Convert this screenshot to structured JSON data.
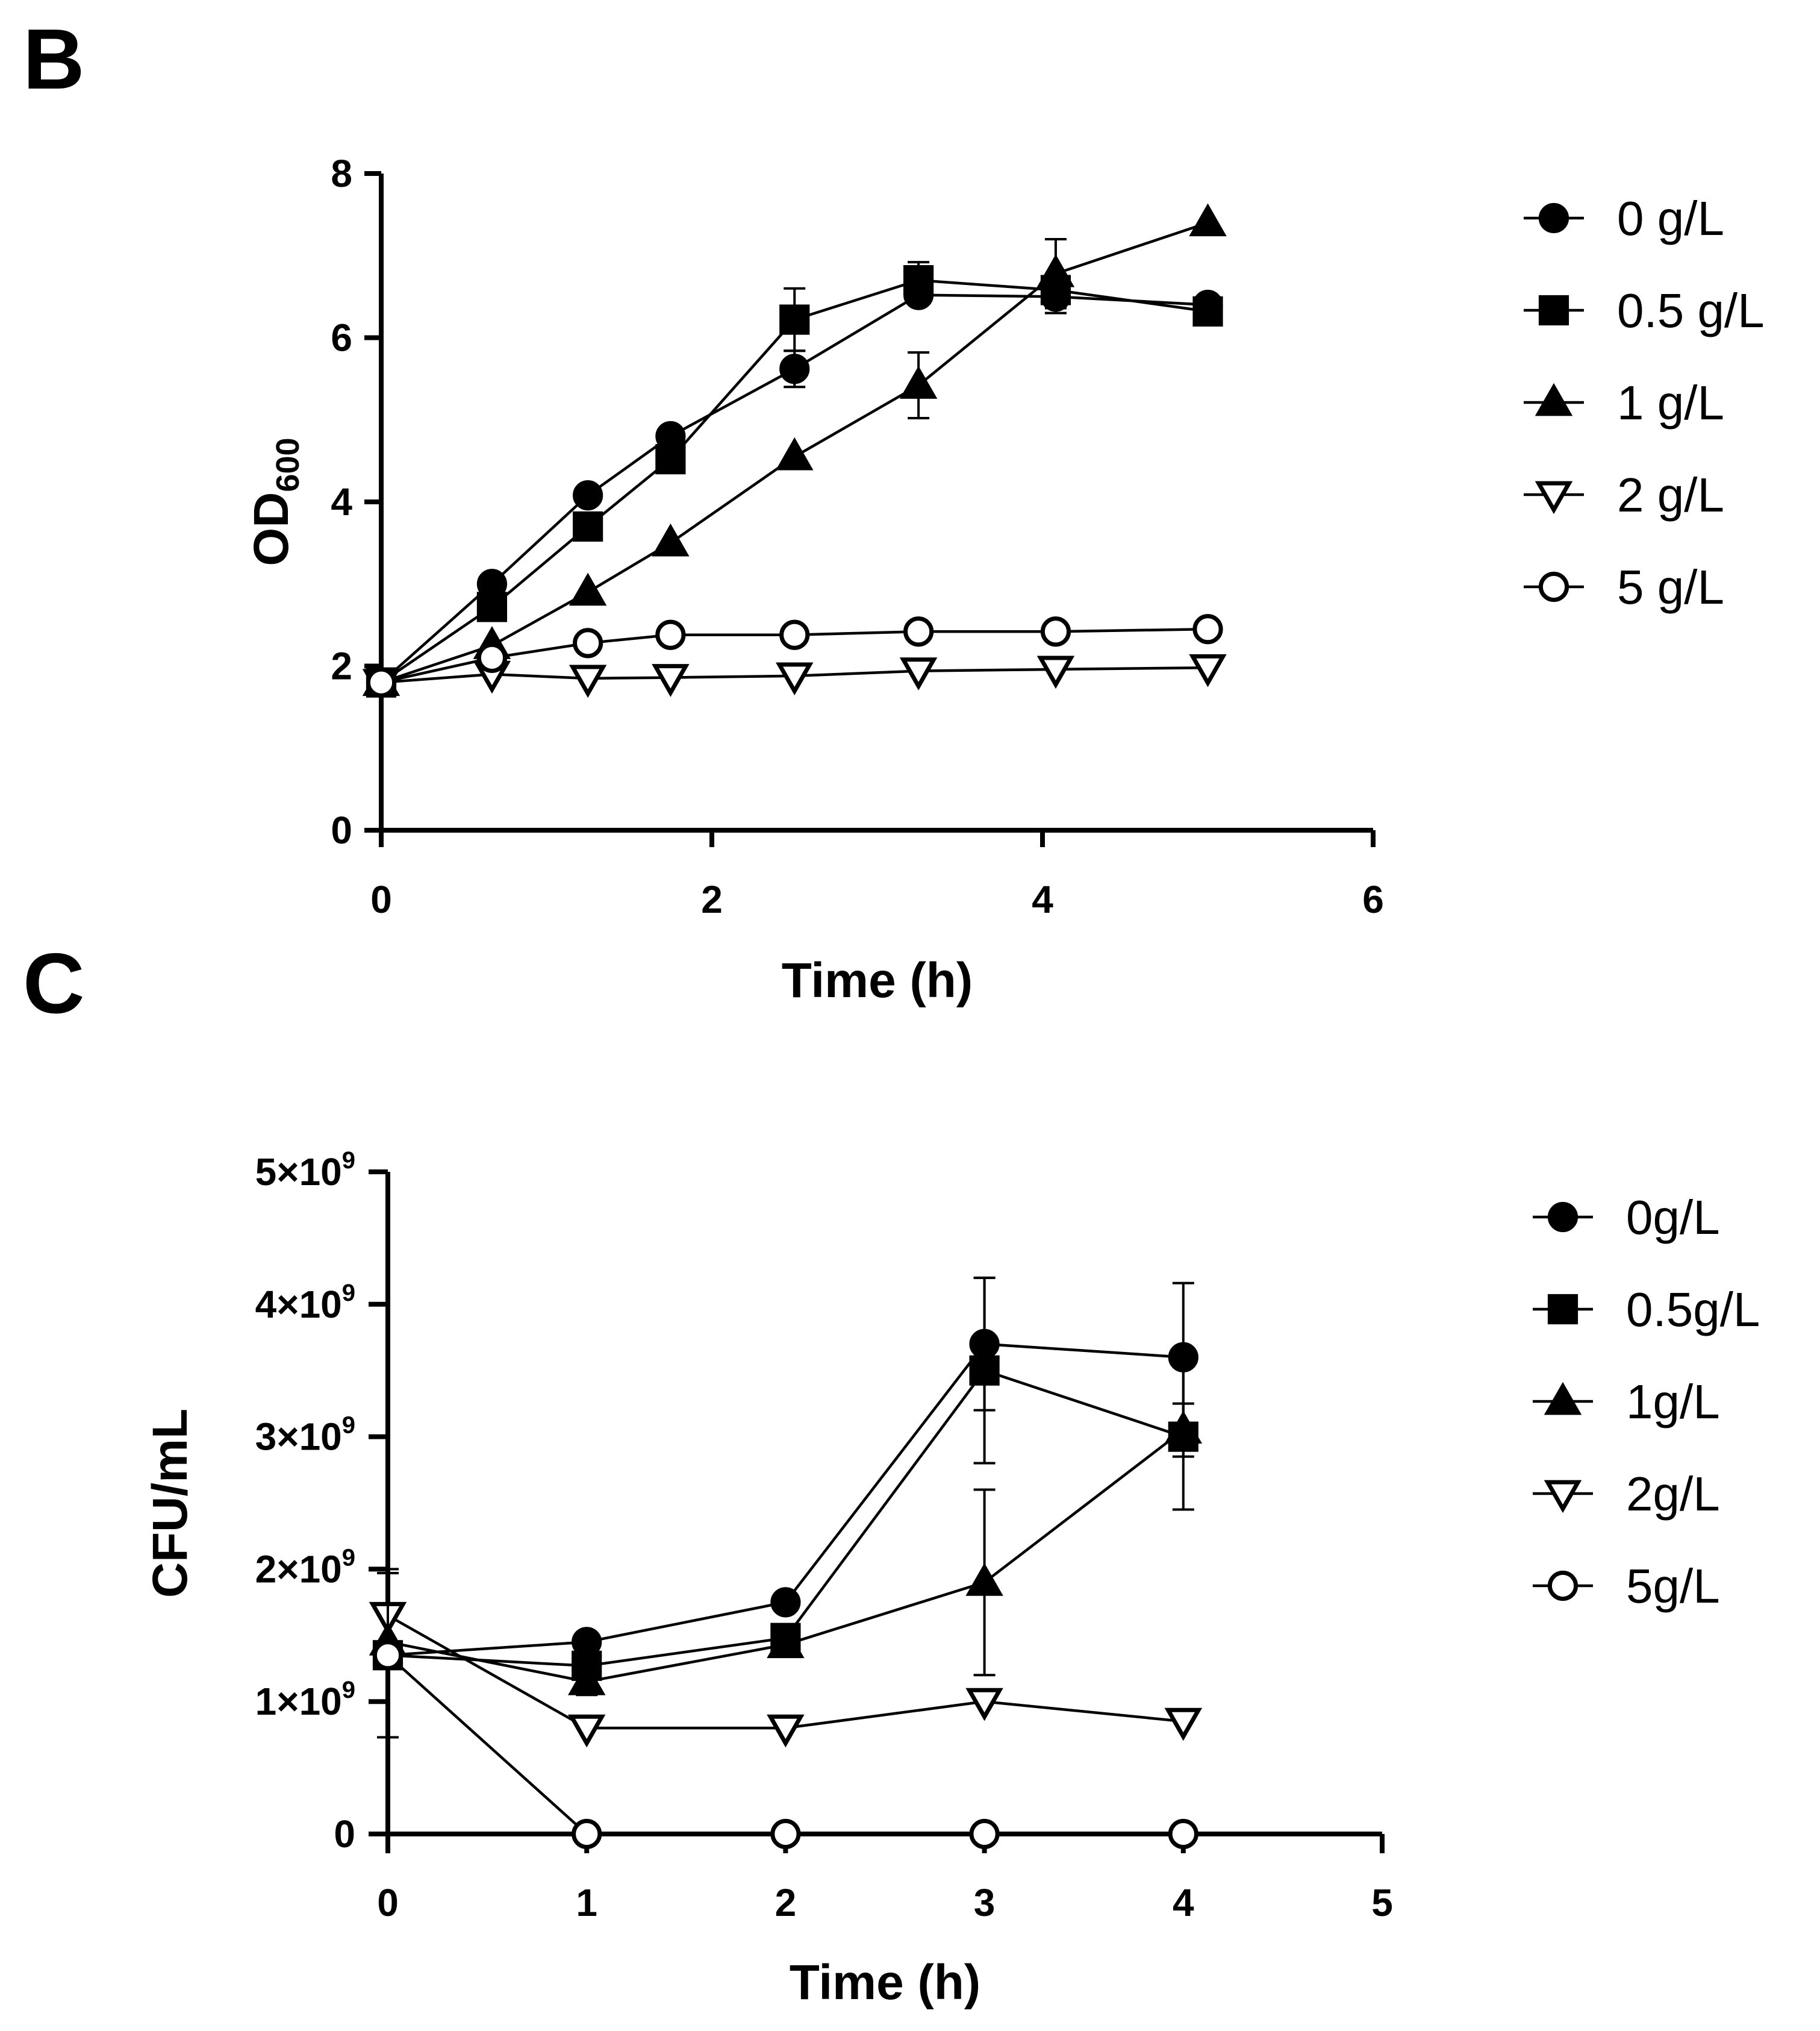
{
  "panel_labels": {
    "b": "B",
    "c": "C"
  },
  "colors": {
    "ink": "#000000",
    "background": "#ffffff"
  },
  "chart_data": [
    {
      "id": "B",
      "type": "line",
      "title": "",
      "xlabel": "Time (h)",
      "ylabel": {
        "text": "OD",
        "subscript": "600"
      },
      "xlim": [
        0,
        6
      ],
      "ylim": [
        0,
        8
      ],
      "x_ticks": [
        0,
        2,
        4,
        6
      ],
      "y_ticks": [
        0,
        2,
        4,
        6,
        8
      ],
      "x_tick_labels": [
        "0",
        "2",
        "4",
        "6"
      ],
      "y_tick_labels": [
        "0",
        "2",
        "4",
        "6",
        "8"
      ],
      "grid": false,
      "legend_position": "right",
      "series": [
        {
          "name": "0 g/L",
          "marker": "circle-filled",
          "x": [
            0,
            0.67,
            1.25,
            1.75,
            2.5,
            3.25,
            4.08,
            5.0
          ],
          "y": [
            1.8,
            3.0,
            4.08,
            4.8,
            5.62,
            6.52,
            6.5,
            6.4
          ],
          "err": [
            0,
            0,
            0,
            0,
            0.22,
            0,
            0.2,
            0
          ]
        },
        {
          "name": "0.5 g/L",
          "marker": "square-filled",
          "x": [
            0,
            0.67,
            1.25,
            1.75,
            2.5,
            3.25,
            4.08,
            5.0
          ],
          "y": [
            1.8,
            2.72,
            3.7,
            4.52,
            6.22,
            6.7,
            6.58,
            6.32
          ],
          "err": [
            0,
            0,
            0,
            0,
            0.38,
            0.22,
            0,
            0
          ]
        },
        {
          "name": "1 g/L",
          "marker": "triangle-up-filled",
          "x": [
            0,
            0.67,
            1.25,
            1.75,
            2.5,
            3.25,
            4.08,
            5.0
          ],
          "y": [
            1.8,
            2.25,
            2.9,
            3.5,
            4.55,
            5.42,
            6.78,
            7.4
          ],
          "err": [
            0,
            0,
            0,
            0,
            0,
            0.4,
            0.42,
            0
          ]
        },
        {
          "name": "2 g/L",
          "marker": "triangle-down-open",
          "x": [
            0,
            0.67,
            1.25,
            1.75,
            2.5,
            3.25,
            4.08,
            5.0
          ],
          "y": [
            1.8,
            1.9,
            1.85,
            1.86,
            1.88,
            1.94,
            1.96,
            1.98
          ],
          "err": [
            0,
            0,
            0,
            0,
            0,
            0,
            0,
            0
          ]
        },
        {
          "name": "5 g/L",
          "marker": "circle-open",
          "x": [
            0,
            0.67,
            1.25,
            1.75,
            2.5,
            3.25,
            4.08,
            5.0
          ],
          "y": [
            1.8,
            2.1,
            2.28,
            2.38,
            2.38,
            2.42,
            2.42,
            2.45
          ],
          "err": [
            0,
            0,
            0,
            0,
            0,
            0,
            0,
            0
          ]
        }
      ]
    },
    {
      "id": "C",
      "type": "line",
      "title": "",
      "xlabel": "Time (h)",
      "ylabel": {
        "text": "CFU/mL"
      },
      "xlim": [
        0,
        5
      ],
      "ylim": [
        0,
        5000000000
      ],
      "x_ticks": [
        0,
        1,
        2,
        3,
        4,
        5
      ],
      "y_ticks": [
        0,
        1000000000,
        2000000000,
        3000000000,
        4000000000,
        5000000000
      ],
      "x_tick_labels": [
        "0",
        "1",
        "2",
        "3",
        "4",
        "5"
      ],
      "y_tick_labels": [
        {
          "text": "0",
          "sup": ""
        },
        {
          "text": "1×10",
          "sup": "9"
        },
        {
          "text": "2×10",
          "sup": "9"
        },
        {
          "text": "3×10",
          "sup": "9"
        },
        {
          "text": "4×10",
          "sup": "9"
        },
        {
          "text": "5×10",
          "sup": "9"
        }
      ],
      "grid": false,
      "legend_position": "right",
      "series": [
        {
          "name": "0g/L",
          "marker": "circle-filled",
          "x": [
            0,
            1,
            2,
            3,
            4
          ],
          "y": [
            1350000000,
            1450000000,
            1750000000,
            3700000000,
            3600000000
          ],
          "err": [
            0,
            0,
            0,
            500000000.0,
            560000000.0
          ]
        },
        {
          "name": "0.5g/L",
          "marker": "square-filled",
          "x": [
            0,
            1,
            2,
            3,
            4
          ],
          "y": [
            1350000000,
            1270000000,
            1480000000,
            3500000000,
            3000000000
          ],
          "err": [
            0,
            0,
            0,
            700000000.0,
            550000000.0
          ]
        },
        {
          "name": "1g/L",
          "marker": "triangle-up-filled",
          "x": [
            0,
            1,
            2,
            3,
            4
          ],
          "y": [
            1450000000,
            1150000000,
            1430000000,
            1900000000,
            3050000000
          ],
          "err": [
            0,
            100000000.0,
            0,
            700000000.0,
            200000000.0
          ]
        },
        {
          "name": "2g/L",
          "marker": "triangle-down-open",
          "x": [
            0,
            1,
            2,
            3,
            4
          ],
          "y": [
            1650000000,
            800000000,
            800000000,
            1000000000,
            850000000
          ],
          "err": [
            350000000.0,
            0,
            0,
            0,
            0
          ]
        },
        {
          "name": "5g/L",
          "marker": "circle-open",
          "x": [
            0,
            1,
            2,
            3,
            4
          ],
          "y": [
            1350000000,
            0,
            0,
            0,
            0
          ],
          "err": [
            620000000.0,
            0,
            0,
            0,
            0
          ]
        }
      ]
    }
  ]
}
